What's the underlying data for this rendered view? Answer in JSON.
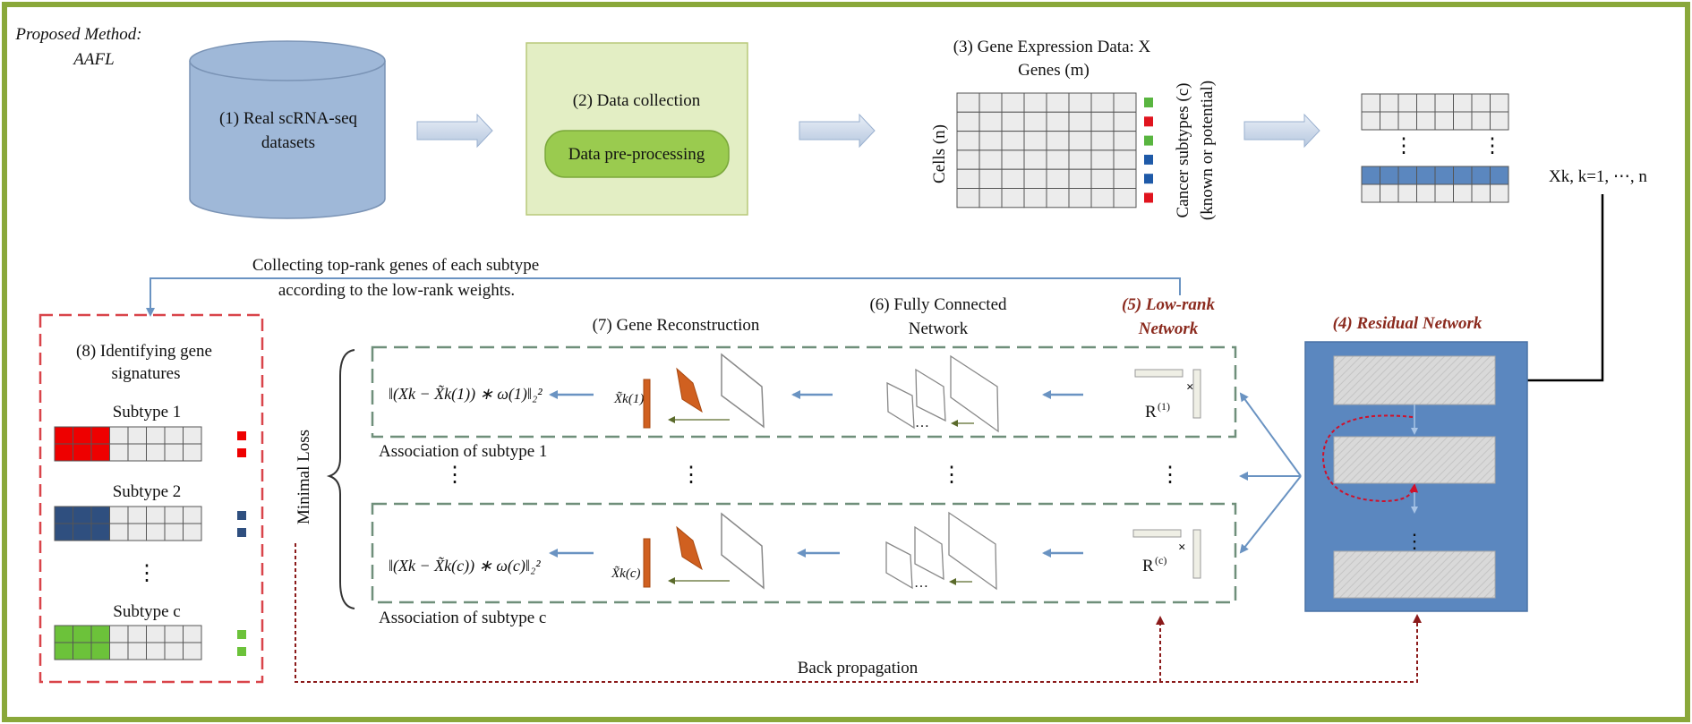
{
  "proposed_method": {
    "line1": "Proposed Method:",
    "line2": "AAFL"
  },
  "step1": {
    "line1": "(1) Real scRNA-seq",
    "line2": "datasets"
  },
  "step2": {
    "title": "(2) Data collection",
    "pill": "Data pre-processing"
  },
  "step3": {
    "title": "(3) Gene Expression Data: X",
    "genes_label": "Genes (m)",
    "cells_label": "Cells (n)",
    "subtypes_line1": "Cancer subtypes (c)",
    "subtypes_line2": "(known or potential)"
  },
  "xk_label": "Xk, k=1, ⋯, n",
  "collect_text": {
    "line1": "Collecting top-rank genes of each subtype",
    "line2": "according to the low-rank weights."
  },
  "step8": {
    "title_line1": "(8) Identifying gene",
    "title_line2": "signatures",
    "subtypes": [
      {
        "label": "Subtype 1",
        "color": "#ee0000"
      },
      {
        "label": "Subtype 2",
        "color": "#2f4f7f"
      },
      {
        "label": "Subtype c",
        "color": "#6cc23a"
      }
    ],
    "ellipsis": "⋮"
  },
  "step7": {
    "title": "(7) Gene Reconstruction"
  },
  "step6": {
    "line1": "(6) Fully Connected",
    "line2": "Network"
  },
  "step5": {
    "line1": "(5) Low-rank",
    "line2": "Network"
  },
  "step4": {
    "title": "(4) Residual Network"
  },
  "minimal_loss": "Minimal Loss",
  "assoc1": "Association of subtype 1",
  "assocc": "Association of subtype c",
  "back_prop": "Back propagation",
  "r1": {
    "base": "R",
    "sup": "(1)"
  },
  "rc": {
    "base": "R",
    "sup": "(c)"
  },
  "loss1": {
    "text": "‖(Xk − X̃k(1)) ∗ ω(1)‖₂²"
  },
  "lossc": {
    "text": "‖(Xk − X̃k(c)) ∗ ω(c)‖₂²"
  },
  "xhat1": "X̃k(1)",
  "xhatc": "X̃k(c)",
  "colors": {
    "frame": "#8aa83a",
    "cylinder": "#9fb8d8",
    "box2_fill": "#e3eec4",
    "pill": "#9acb4f",
    "resnet_bg": "#5b87bf",
    "dashed_green": "#6f8f7a",
    "dashed_red": "#d9444a",
    "arrow_blue": "#6a93c2",
    "orange": "#d06020",
    "dark_red": "#8b1a1a",
    "row_highlight": "#5b87bf"
  },
  "subtype_markers": [
    "#59b540",
    "#e0141e",
    "#59b540",
    "#1f5aa8",
    "#1f5aa8",
    "#e0141e"
  ]
}
